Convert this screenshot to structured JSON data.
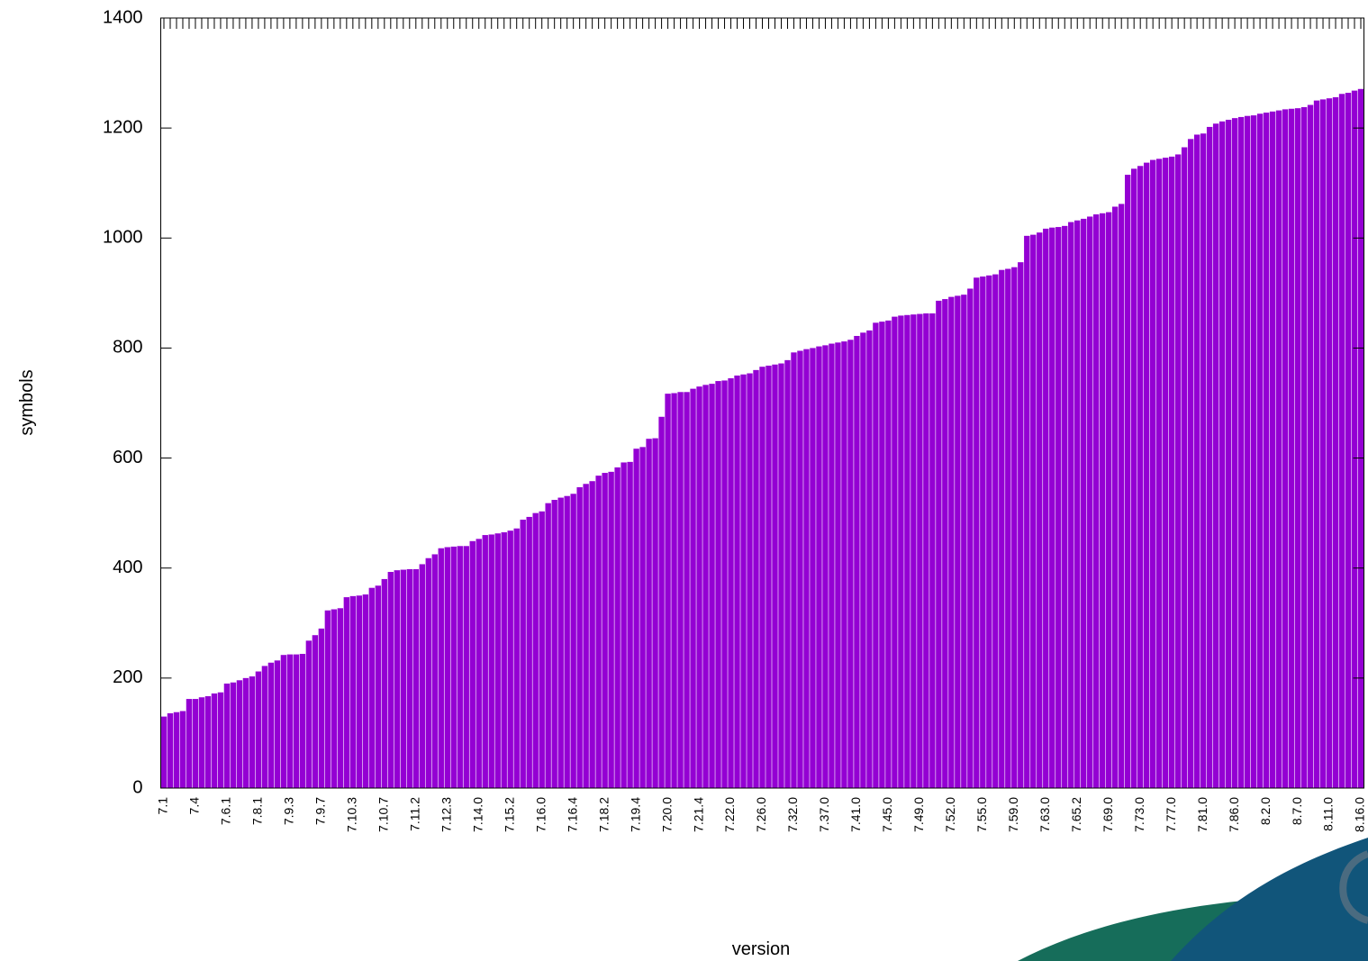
{
  "chart_data": {
    "type": "bar",
    "x_label": "version",
    "y_label": "symbols",
    "color": "#9400d3",
    "ylim": [
      0,
      1400
    ],
    "yticks": [
      0,
      200,
      400,
      600,
      800,
      1000,
      1200,
      1400
    ],
    "categories": [
      "7.1",
      null,
      null,
      null,
      null,
      "7.4",
      null,
      null,
      null,
      null,
      "7.6.1",
      null,
      null,
      null,
      null,
      "7.8.1",
      null,
      null,
      null,
      null,
      "7.9.3",
      null,
      null,
      null,
      null,
      "7.9.7",
      null,
      null,
      null,
      null,
      "7.10.3",
      null,
      null,
      null,
      null,
      "7.10.7",
      null,
      null,
      null,
      null,
      "7.11.2",
      null,
      null,
      null,
      null,
      "7.12.3",
      null,
      null,
      null,
      null,
      "7.14.0",
      null,
      null,
      null,
      null,
      "7.15.2",
      null,
      null,
      null,
      null,
      "7.16.0",
      null,
      null,
      null,
      null,
      "7.16.4",
      null,
      null,
      null,
      null,
      "7.18.2",
      null,
      null,
      null,
      null,
      "7.19.4",
      null,
      null,
      null,
      null,
      "7.20.0",
      null,
      null,
      null,
      null,
      "7.21.4",
      null,
      null,
      null,
      null,
      "7.22.0",
      null,
      null,
      null,
      null,
      "7.26.0",
      null,
      null,
      null,
      null,
      "7.32.0",
      null,
      null,
      null,
      null,
      "7.37.0",
      null,
      null,
      null,
      null,
      "7.41.0",
      null,
      null,
      null,
      null,
      "7.45.0",
      null,
      null,
      null,
      null,
      "7.49.0",
      null,
      null,
      null,
      null,
      "7.52.0",
      null,
      null,
      null,
      null,
      "7.55.0",
      null,
      null,
      null,
      null,
      "7.59.0",
      null,
      null,
      null,
      null,
      "7.63.0",
      null,
      null,
      null,
      null,
      "7.65.2",
      null,
      null,
      null,
      null,
      "7.69.0",
      null,
      null,
      null,
      null,
      "7.73.0",
      null,
      null,
      null,
      null,
      "7.77.0",
      null,
      null,
      null,
      null,
      "7.81.0",
      null,
      null,
      null,
      null,
      "7.86.0",
      null,
      null,
      null,
      null,
      "8.2.0",
      null,
      null,
      null,
      null,
      "8.7.0",
      null,
      null,
      null,
      null,
      "8.11.0",
      null,
      null,
      null,
      null,
      "8.16.0"
    ],
    "values": [
      130,
      136,
      138,
      140,
      162,
      162,
      165,
      167,
      172,
      174,
      190,
      192,
      196,
      200,
      203,
      212,
      222,
      228,
      232,
      242,
      243,
      243,
      244,
      268,
      278,
      290,
      323,
      325,
      327,
      347,
      349,
      350,
      352,
      364,
      368,
      380,
      393,
      396,
      397,
      398,
      398,
      407,
      418,
      425,
      436,
      438,
      439,
      440,
      440,
      449,
      453,
      460,
      461,
      463,
      465,
      468,
      472,
      488,
      493,
      500,
      503,
      518,
      524,
      528,
      531,
      535,
      547,
      553,
      558,
      568,
      573,
      575,
      583,
      592,
      593,
      617,
      620,
      635,
      636,
      675,
      717,
      718,
      720,
      720,
      726,
      730,
      733,
      735,
      740,
      741,
      745,
      750,
      752,
      754,
      760,
      766,
      768,
      770,
      772,
      778,
      792,
      795,
      798,
      800,
      803,
      805,
      808,
      810,
      812,
      815,
      822,
      828,
      832,
      846,
      848,
      850,
      857,
      859,
      860,
      861,
      862,
      863,
      863,
      886,
      889,
      893,
      895,
      897,
      908,
      928,
      930,
      932,
      934,
      942,
      944,
      947,
      956,
      1004,
      1006,
      1010,
      1017,
      1019,
      1020,
      1022,
      1029,
      1032,
      1035,
      1039,
      1043,
      1045,
      1047,
      1057,
      1062,
      1115,
      1126,
      1131,
      1137,
      1142,
      1144,
      1146,
      1148,
      1152,
      1165,
      1180,
      1188,
      1190,
      1202,
      1208,
      1212,
      1215,
      1218,
      1220,
      1222,
      1223,
      1226,
      1228,
      1230,
      1232,
      1234,
      1235,
      1236,
      1238,
      1242,
      1250,
      1252,
      1254,
      1256,
      1262,
      1264,
      1268,
      1271
    ]
  }
}
